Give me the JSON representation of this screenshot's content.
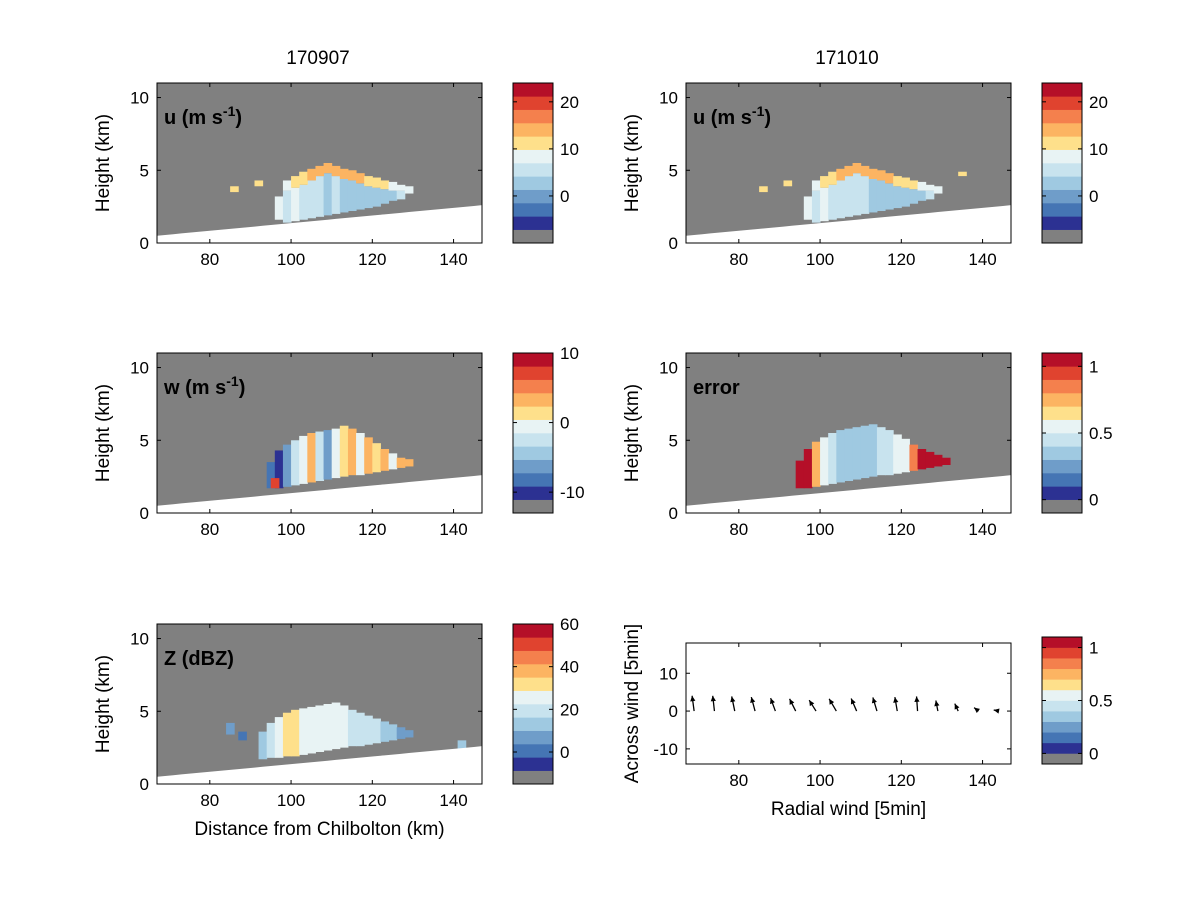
{
  "chart_data": [
    {
      "type": "heatmap",
      "column_title": "170907",
      "panel_label": "u (m s",
      "panel_label_sup": "-1",
      "panel_label_suffix": ")",
      "xlim": [
        67,
        147
      ],
      "ylim": [
        0,
        11
      ],
      "x_ticks": [
        80,
        100,
        120,
        140
      ],
      "y_ticks": [
        0,
        5,
        10
      ],
      "xlabel": "",
      "ylabel": "Height (km)",
      "colorbar": {
        "range": [
          -10,
          24
        ],
        "ticks": [
          0,
          10,
          20
        ]
      },
      "cells": [
        {
          "x": 97,
          "y0": 1.6,
          "y1": 3.2,
          "v": 6
        },
        {
          "x": 99,
          "y0": 1.4,
          "y1": 3.6,
          "v": 5
        },
        {
          "x": 101,
          "y0": 1.5,
          "y1": 3.8,
          "v": 6
        },
        {
          "x": 103,
          "y0": 1.6,
          "y1": 4.0,
          "v": 3
        },
        {
          "x": 105,
          "y0": 1.7,
          "y1": 4.3,
          "v": 4
        },
        {
          "x": 107,
          "y0": 1.8,
          "y1": 4.6,
          "v": 3
        },
        {
          "x": 109,
          "y0": 1.9,
          "y1": 4.8,
          "v": 2
        },
        {
          "x": 111,
          "y0": 2.0,
          "y1": 4.6,
          "v": 3
        },
        {
          "x": 113,
          "y0": 2.1,
          "y1": 4.4,
          "v": 2
        },
        {
          "x": 115,
          "y0": 2.2,
          "y1": 4.3,
          "v": 1
        },
        {
          "x": 117,
          "y0": 2.3,
          "y1": 4.1,
          "v": 2
        },
        {
          "x": 119,
          "y0": 2.4,
          "y1": 3.9,
          "v": 1
        },
        {
          "x": 121,
          "y0": 2.5,
          "y1": 3.8,
          "v": 0
        },
        {
          "x": 123,
          "y0": 2.7,
          "y1": 3.7,
          "v": 1
        },
        {
          "x": 125,
          "y0": 2.9,
          "y1": 3.6,
          "v": 2
        },
        {
          "x": 127,
          "y0": 3.0,
          "y1": 3.6,
          "v": 3
        },
        {
          "x": 99,
          "y0": 3.6,
          "y1": 4.3,
          "v": 8
        },
        {
          "x": 101,
          "y0": 3.8,
          "y1": 4.6,
          "v": 9
        },
        {
          "x": 103,
          "y0": 4.0,
          "y1": 4.9,
          "v": 11
        },
        {
          "x": 105,
          "y0": 4.3,
          "y1": 5.1,
          "v": 12
        },
        {
          "x": 107,
          "y0": 4.6,
          "y1": 5.3,
          "v": 13
        },
        {
          "x": 109,
          "y0": 4.8,
          "y1": 5.5,
          "v": 14
        },
        {
          "x": 111,
          "y0": 4.6,
          "y1": 5.3,
          "v": 13
        },
        {
          "x": 113,
          "y0": 4.4,
          "y1": 5.1,
          "v": 12
        },
        {
          "x": 115,
          "y0": 4.3,
          "y1": 5.0,
          "v": 13
        },
        {
          "x": 117,
          "y0": 4.1,
          "y1": 4.8,
          "v": 12
        },
        {
          "x": 119,
          "y0": 3.9,
          "y1": 4.6,
          "v": 11
        },
        {
          "x": 121,
          "y0": 3.8,
          "y1": 4.5,
          "v": 10
        },
        {
          "x": 123,
          "y0": 3.7,
          "y1": 4.3,
          "v": 9
        },
        {
          "x": 125,
          "y0": 3.6,
          "y1": 4.2,
          "v": 8
        },
        {
          "x": 127,
          "y0": 3.6,
          "y1": 4.0,
          "v": 7
        },
        {
          "x": 129,
          "y0": 3.4,
          "y1": 3.9,
          "v": 6
        },
        {
          "x": 86,
          "y0": 3.5,
          "y1": 3.9,
          "v": 9
        },
        {
          "x": 92,
          "y0": 3.9,
          "y1": 4.3,
          "v": 9
        }
      ]
    },
    {
      "type": "heatmap",
      "column_title": "171010",
      "panel_label": "u (m s",
      "panel_label_sup": "-1",
      "panel_label_suffix": ")",
      "xlim": [
        67,
        147
      ],
      "ylim": [
        0,
        11
      ],
      "x_ticks": [
        80,
        100,
        120,
        140
      ],
      "y_ticks": [
        0,
        5,
        10
      ],
      "xlabel": "",
      "ylabel": "Height (km)",
      "colorbar": {
        "range": [
          -10,
          24
        ],
        "ticks": [
          0,
          10,
          20
        ]
      },
      "cells": [
        {
          "x": 97,
          "y0": 1.6,
          "y1": 3.2,
          "v": 7
        },
        {
          "x": 99,
          "y0": 1.4,
          "y1": 3.6,
          "v": 5
        },
        {
          "x": 101,
          "y0": 1.5,
          "y1": 3.8,
          "v": 6
        },
        {
          "x": 103,
          "y0": 1.6,
          "y1": 4.0,
          "v": 4
        },
        {
          "x": 105,
          "y0": 1.7,
          "y1": 4.3,
          "v": 5
        },
        {
          "x": 107,
          "y0": 1.8,
          "y1": 4.6,
          "v": 4
        },
        {
          "x": 109,
          "y0": 1.9,
          "y1": 4.8,
          "v": 3
        },
        {
          "x": 111,
          "y0": 2.0,
          "y1": 4.6,
          "v": 3
        },
        {
          "x": 113,
          "y0": 2.1,
          "y1": 4.4,
          "v": 2
        },
        {
          "x": 115,
          "y0": 2.2,
          "y1": 4.3,
          "v": 2
        },
        {
          "x": 117,
          "y0": 2.3,
          "y1": 4.1,
          "v": 2
        },
        {
          "x": 119,
          "y0": 2.4,
          "y1": 3.9,
          "v": 1
        },
        {
          "x": 121,
          "y0": 2.5,
          "y1": 3.8,
          "v": 1
        },
        {
          "x": 123,
          "y0": 2.7,
          "y1": 3.7,
          "v": 1
        },
        {
          "x": 125,
          "y0": 2.9,
          "y1": 3.6,
          "v": 2
        },
        {
          "x": 127,
          "y0": 3.0,
          "y1": 3.6,
          "v": 3
        },
        {
          "x": 99,
          "y0": 3.6,
          "y1": 4.3,
          "v": 8
        },
        {
          "x": 101,
          "y0": 3.8,
          "y1": 4.6,
          "v": 9
        },
        {
          "x": 103,
          "y0": 4.0,
          "y1": 4.9,
          "v": 11
        },
        {
          "x": 105,
          "y0": 4.3,
          "y1": 5.1,
          "v": 12
        },
        {
          "x": 107,
          "y0": 4.6,
          "y1": 5.3,
          "v": 13
        },
        {
          "x": 109,
          "y0": 4.8,
          "y1": 5.5,
          "v": 14
        },
        {
          "x": 111,
          "y0": 4.6,
          "y1": 5.3,
          "v": 13
        },
        {
          "x": 113,
          "y0": 4.4,
          "y1": 5.1,
          "v": 13
        },
        {
          "x": 115,
          "y0": 4.3,
          "y1": 5.0,
          "v": 12
        },
        {
          "x": 117,
          "y0": 4.1,
          "y1": 4.8,
          "v": 12
        },
        {
          "x": 119,
          "y0": 3.9,
          "y1": 4.6,
          "v": 11
        },
        {
          "x": 121,
          "y0": 3.8,
          "y1": 4.5,
          "v": 10
        },
        {
          "x": 123,
          "y0": 3.7,
          "y1": 4.3,
          "v": 9
        },
        {
          "x": 125,
          "y0": 3.6,
          "y1": 4.2,
          "v": 8
        },
        {
          "x": 127,
          "y0": 3.6,
          "y1": 4.0,
          "v": 7
        },
        {
          "x": 129,
          "y0": 3.4,
          "y1": 3.9,
          "v": 6
        },
        {
          "x": 86,
          "y0": 3.5,
          "y1": 3.9,
          "v": 9
        },
        {
          "x": 92,
          "y0": 3.9,
          "y1": 4.3,
          "v": 9
        },
        {
          "x": 135,
          "y0": 4.6,
          "y1": 4.9,
          "v": 10
        }
      ]
    },
    {
      "type": "heatmap",
      "panel_label": "w (m s",
      "panel_label_sup": "-1",
      "panel_label_suffix": ")",
      "xlim": [
        67,
        147
      ],
      "ylim": [
        0,
        11
      ],
      "x_ticks": [
        80,
        100,
        120,
        140
      ],
      "y_ticks": [
        0,
        5,
        10
      ],
      "xlabel": "",
      "ylabel": "Height (km)",
      "colorbar": {
        "range": [
          -13,
          10
        ],
        "ticks": [
          -10,
          0,
          10
        ]
      },
      "cells": [
        {
          "x": 95,
          "y0": 1.7,
          "y1": 3.5,
          "v": -9
        },
        {
          "x": 97,
          "y0": 1.7,
          "y1": 4.3,
          "v": -11
        },
        {
          "x": 99,
          "y0": 1.8,
          "y1": 4.7,
          "v": -7
        },
        {
          "x": 101,
          "y0": 1.9,
          "y1": 5.0,
          "v": -4
        },
        {
          "x": 103,
          "y0": 2.0,
          "y1": 5.3,
          "v": -2
        },
        {
          "x": 105,
          "y0": 2.1,
          "y1": 5.5,
          "v": 2
        },
        {
          "x": 107,
          "y0": 2.2,
          "y1": 5.6,
          "v": -3
        },
        {
          "x": 109,
          "y0": 2.3,
          "y1": 5.7,
          "v": -8
        },
        {
          "x": 111,
          "y0": 2.4,
          "y1": 5.8,
          "v": -2
        },
        {
          "x": 113,
          "y0": 2.5,
          "y1": 6.0,
          "v": 1
        },
        {
          "x": 115,
          "y0": 2.6,
          "y1": 5.8,
          "v": 3
        },
        {
          "x": 117,
          "y0": 2.6,
          "y1": 5.5,
          "v": -1
        },
        {
          "x": 119,
          "y0": 2.7,
          "y1": 5.2,
          "v": 2
        },
        {
          "x": 121,
          "y0": 2.8,
          "y1": 4.8,
          "v": 1
        },
        {
          "x": 123,
          "y0": 2.9,
          "y1": 4.4,
          "v": 2
        },
        {
          "x": 125,
          "y0": 3.0,
          "y1": 4.1,
          "v": -2
        },
        {
          "x": 127,
          "y0": 3.1,
          "y1": 3.8,
          "v": 3
        },
        {
          "x": 129,
          "y0": 3.2,
          "y1": 3.7,
          "v": 2
        },
        {
          "x": 96,
          "y0": 1.7,
          "y1": 2.4,
          "v": 6
        }
      ]
    },
    {
      "type": "heatmap",
      "panel_label": "error",
      "xlim": [
        67,
        147
      ],
      "ylim": [
        0,
        11
      ],
      "x_ticks": [
        80,
        100,
        120,
        140
      ],
      "y_ticks": [
        0,
        5,
        10
      ],
      "xlabel": "",
      "ylabel": "Height (km)",
      "colorbar": {
        "range": [
          -0.1,
          1.1
        ],
        "ticks": [
          0,
          0.5,
          1
        ]
      },
      "cells": [
        {
          "x": 95,
          "y0": 1.7,
          "y1": 3.6,
          "v": 1.05
        },
        {
          "x": 97,
          "y0": 1.7,
          "y1": 4.4,
          "v": 1.05
        },
        {
          "x": 99,
          "y0": 1.8,
          "y1": 4.9,
          "v": 0.75
        },
        {
          "x": 101,
          "y0": 1.9,
          "y1": 5.2,
          "v": 0.55
        },
        {
          "x": 103,
          "y0": 2.0,
          "y1": 5.5,
          "v": 0.35
        },
        {
          "x": 105,
          "y0": 2.1,
          "y1": 5.7,
          "v": 0.3
        },
        {
          "x": 107,
          "y0": 2.2,
          "y1": 5.8,
          "v": 0.25
        },
        {
          "x": 109,
          "y0": 2.3,
          "y1": 5.9,
          "v": 0.3
        },
        {
          "x": 111,
          "y0": 2.4,
          "y1": 6.0,
          "v": 0.25
        },
        {
          "x": 113,
          "y0": 2.5,
          "y1": 6.1,
          "v": 0.3
        },
        {
          "x": 115,
          "y0": 2.6,
          "y1": 5.9,
          "v": 0.35
        },
        {
          "x": 117,
          "y0": 2.6,
          "y1": 5.7,
          "v": 0.4
        },
        {
          "x": 119,
          "y0": 2.7,
          "y1": 5.4,
          "v": 0.5
        },
        {
          "x": 121,
          "y0": 2.8,
          "y1": 5.1,
          "v": 0.55
        },
        {
          "x": 123,
          "y0": 2.9,
          "y1": 4.7,
          "v": 0.8
        },
        {
          "x": 125,
          "y0": 3.0,
          "y1": 4.4,
          "v": 1.05
        },
        {
          "x": 127,
          "y0": 3.1,
          "y1": 4.2,
          "v": 1.05
        },
        {
          "x": 129,
          "y0": 3.2,
          "y1": 4.0,
          "v": 1.05
        },
        {
          "x": 131,
          "y0": 3.3,
          "y1": 3.8,
          "v": 1.05
        }
      ]
    },
    {
      "type": "heatmap",
      "panel_label": "Z (dBZ)",
      "xlim": [
        67,
        147
      ],
      "ylim": [
        0,
        11
      ],
      "x_ticks": [
        80,
        100,
        120,
        140
      ],
      "y_ticks": [
        0,
        5,
        10
      ],
      "xlabel": "Distance from Chilbolton (km)",
      "ylabel": "Height (km)",
      "colorbar": {
        "range": [
          -15,
          60
        ],
        "ticks": [
          0,
          20,
          40,
          60
        ]
      },
      "cells": [
        {
          "x": 93,
          "y0": 1.7,
          "y1": 3.6,
          "v": 10
        },
        {
          "x": 95,
          "y0": 1.8,
          "y1": 4.2,
          "v": 15
        },
        {
          "x": 97,
          "y0": 1.8,
          "y1": 4.6,
          "v": 20
        },
        {
          "x": 99,
          "y0": 1.9,
          "y1": 4.9,
          "v": 26
        },
        {
          "x": 101,
          "y0": 1.9,
          "y1": 5.1,
          "v": 29
        },
        {
          "x": 103,
          "y0": 2.0,
          "y1": 5.2,
          "v": 25
        },
        {
          "x": 105,
          "y0": 2.1,
          "y1": 5.3,
          "v": 24
        },
        {
          "x": 107,
          "y0": 2.2,
          "y1": 5.4,
          "v": 22
        },
        {
          "x": 109,
          "y0": 2.3,
          "y1": 5.5,
          "v": 21
        },
        {
          "x": 111,
          "y0": 2.4,
          "y1": 5.6,
          "v": 22
        },
        {
          "x": 113,
          "y0": 2.5,
          "y1": 5.4,
          "v": 20
        },
        {
          "x": 115,
          "y0": 2.6,
          "y1": 5.1,
          "v": 19
        },
        {
          "x": 117,
          "y0": 2.6,
          "y1": 4.9,
          "v": 18
        },
        {
          "x": 119,
          "y0": 2.7,
          "y1": 4.7,
          "v": 17
        },
        {
          "x": 121,
          "y0": 2.8,
          "y1": 4.5,
          "v": 15
        },
        {
          "x": 123,
          "y0": 2.9,
          "y1": 4.3,
          "v": 12
        },
        {
          "x": 125,
          "y0": 3.0,
          "y1": 4.1,
          "v": 8
        },
        {
          "x": 127,
          "y0": 3.1,
          "y1": 3.9,
          "v": 5
        },
        {
          "x": 129,
          "y0": 3.2,
          "y1": 3.7,
          "v": 2
        },
        {
          "x": 85,
          "y0": 3.4,
          "y1": 4.2,
          "v": 2
        },
        {
          "x": 88,
          "y0": 3.0,
          "y1": 3.6,
          "v": -2
        },
        {
          "x": 142,
          "y0": 2.0,
          "y1": 3.0,
          "v": 12
        }
      ]
    },
    {
      "type": "quiver",
      "panel_label": "",
      "xlim": [
        67,
        147
      ],
      "ylim": [
        -14,
        18
      ],
      "x_ticks": [
        80,
        100,
        120,
        140
      ],
      "y_ticks": [
        -10,
        0,
        10
      ],
      "xlabel": "Radial wind [5min]",
      "ylabel": "Across wind [5min]",
      "colorbar": {
        "range": [
          -0.1,
          1.1
        ],
        "ticks": [
          0,
          0.5,
          1
        ]
      },
      "arrows": [
        {
          "x": 69,
          "u": -0.6,
          "v": 4.5
        },
        {
          "x": 74,
          "u": -0.5,
          "v": 4.5
        },
        {
          "x": 79,
          "u": -0.9,
          "v": 4.3
        },
        {
          "x": 84,
          "u": -1.1,
          "v": 4.1
        },
        {
          "x": 89,
          "u": -1.4,
          "v": 3.8
        },
        {
          "x": 94,
          "u": -1.8,
          "v": 3.6
        },
        {
          "x": 99,
          "u": -2.0,
          "v": 3.2
        },
        {
          "x": 104,
          "u": -2.1,
          "v": 3.6
        },
        {
          "x": 109,
          "u": -1.6,
          "v": 3.7
        },
        {
          "x": 114,
          "u": -1.2,
          "v": 4.0
        },
        {
          "x": 119,
          "u": -0.7,
          "v": 4.1
        },
        {
          "x": 124,
          "u": -0.3,
          "v": 4.3
        },
        {
          "x": 129,
          "u": -0.6,
          "v": 3.1
        },
        {
          "x": 134,
          "u": -1.0,
          "v": 2.2
        },
        {
          "x": 139,
          "u": -1.3,
          "v": 1.0
        },
        {
          "x": 144,
          "u": -1.5,
          "v": 0.3
        }
      ]
    }
  ],
  "colors": {
    "background_gray": "#808080",
    "ground": "#ffffff",
    "palette": [
      "#2c3192",
      "#4575b4",
      "#6f9dc9",
      "#9fc9e1",
      "#c8e3ee",
      "#e8f3f4",
      "#fee08b",
      "#fcb462",
      "#f4804d",
      "#e0432f",
      "#b50f28"
    ]
  }
}
